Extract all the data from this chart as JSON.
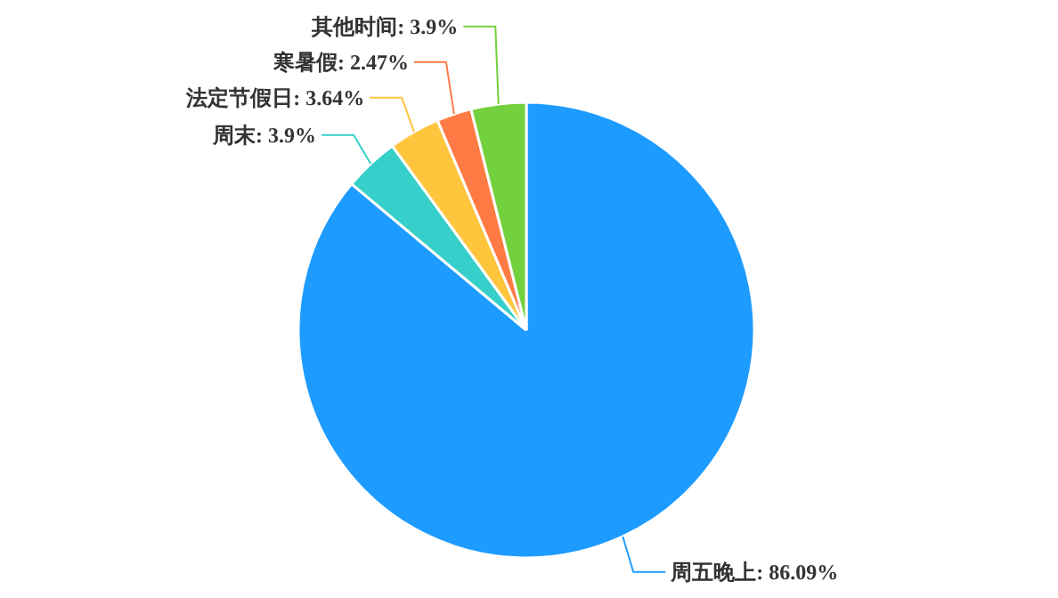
{
  "chart_data": {
    "type": "pie",
    "categories": [
      "周五晚上",
      "周末",
      "法定节假日",
      "寒暑假",
      "其他时间"
    ],
    "values": [
      86.09,
      3.9,
      3.64,
      2.47,
      3.9
    ],
    "value_labels": [
      "86.09%",
      "3.9%",
      "3.64%",
      "2.47%",
      "3.9%"
    ],
    "colors": [
      "#1e9bff",
      "#36cfc9",
      "#ffc53d",
      "#ff7a45",
      "#73d13d"
    ]
  }
}
